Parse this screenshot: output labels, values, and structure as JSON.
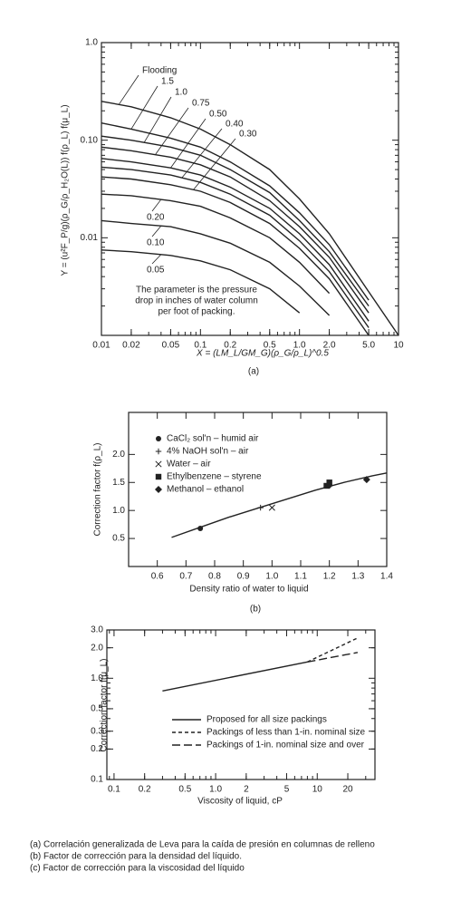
{
  "chart_data": [
    {
      "type": "line",
      "color": "#222222",
      "xlabel": "X = (LM_L/GM_G)(ρ_G/ρ_L)^0.5",
      "ylabel": "Y = (u²F_P/g)(ρ_G/ρ_H₂O(L)) f(ρ_L) f(μ_L)",
      "caption": "(a)",
      "annotation": [
        "The parameter is the pressure",
        "drop in inches of water column",
        "per foot of packing."
      ],
      "xlog": true,
      "ylog": true,
      "xlim": [
        0.01,
        10
      ],
      "ylim": [
        0.001,
        1
      ],
      "xticks": [
        0.01,
        0.02,
        0.05,
        0.1,
        0.2,
        0.5,
        {
          "value": 1,
          "label": "1.0"
        },
        {
          "value": 2,
          "label": "2.0"
        },
        {
          "value": 5,
          "label": "5.0"
        },
        10
      ],
      "yticks": [
        0.01,
        {
          "value": 0.1,
          "label": "0.10"
        },
        {
          "value": 1,
          "label": "1.0"
        }
      ],
      "x": [
        0.01,
        0.02,
        0.05,
        0.1,
        0.2,
        0.5,
        1,
        2,
        5,
        10
      ],
      "series": [
        {
          "name": "Flooding",
          "values": [
            0.25,
            0.22,
            0.17,
            0.13,
            0.09,
            0.05,
            0.025,
            0.011,
            0.0028,
            0.001
          ]
        },
        {
          "name": "1.5",
          "values": [
            0.15,
            0.13,
            0.105,
            0.085,
            0.06,
            0.034,
            0.018,
            0.0085,
            0.0023,
            null
          ]
        },
        {
          "name": "1.0",
          "values": [
            0.11,
            0.1,
            0.085,
            0.07,
            0.05,
            0.029,
            0.015,
            0.0072,
            0.002,
            null
          ]
        },
        {
          "name": "0.75",
          "values": [
            0.085,
            0.078,
            0.067,
            0.056,
            0.042,
            0.024,
            0.013,
            0.0063,
            0.0017,
            null
          ]
        },
        {
          "name": "0.50",
          "values": [
            0.065,
            0.06,
            0.052,
            0.044,
            0.033,
            0.02,
            0.011,
            0.0053,
            0.0014,
            null
          ]
        },
        {
          "name": "0.40",
          "values": [
            0.053,
            0.05,
            0.044,
            0.037,
            0.028,
            0.017,
            0.0093,
            0.0045,
            0.0012,
            null
          ]
        },
        {
          "name": "0.30",
          "values": [
            0.042,
            0.04,
            0.035,
            0.03,
            0.023,
            0.014,
            0.0078,
            0.0038,
            0.001,
            null
          ]
        },
        {
          "name": "0.20",
          "values": [
            0.028,
            0.027,
            0.024,
            0.021,
            0.016,
            0.01,
            0.0056,
            0.0027,
            null,
            null
          ]
        },
        {
          "name": "0.10",
          "values": [
            0.015,
            0.014,
            0.013,
            0.011,
            0.0088,
            0.0056,
            0.0032,
            0.0016,
            null,
            null
          ]
        },
        {
          "name": "0.05",
          "values": [
            0.0075,
            0.0072,
            0.0066,
            0.0058,
            0.0047,
            0.003,
            0.0017,
            null,
            null,
            null
          ]
        }
      ]
    },
    {
      "type": "scatter",
      "color": "#222222",
      "xlabel": "Density ratio of water to liquid",
      "ylabel": "Correction factor f(ρ_L)",
      "caption": "(b)",
      "legend": "upper left",
      "xlog": false,
      "ylog": false,
      "xlim": [
        0.5,
        1.4
      ],
      "ylim": [
        0,
        2.75
      ],
      "xticks": [
        0.6,
        0.7,
        0.8,
        0.9,
        {
          "value": 1,
          "label": "1.0"
        },
        1.1,
        1.2,
        1.3,
        1.4
      ],
      "yticks": [
        0.5,
        {
          "value": 1,
          "label": "1.0"
        },
        1.5,
        {
          "value": 2,
          "label": "2.0"
        }
      ],
      "series": [
        {
          "linestyle": "solid",
          "x": [
            0.65,
            0.75,
            0.85,
            0.95,
            1.05,
            1.15,
            1.25,
            1.35,
            1.4
          ],
          "values": [
            0.52,
            0.7,
            0.88,
            1.04,
            1.2,
            1.36,
            1.5,
            1.62,
            1.67
          ]
        },
        {
          "name": "CaCl₂ sol'n – humid air",
          "marker": "circle",
          "x": [
            0.75
          ],
          "values": [
            0.68
          ]
        },
        {
          "name": "4% NaOH sol'n – air",
          "marker": "plus",
          "x": [
            0.96
          ],
          "values": [
            1.05
          ]
        },
        {
          "name": "Water – air",
          "marker": "cross",
          "x": [
            1.0
          ],
          "values": [
            1.05
          ]
        },
        {
          "name": "Ethylbenzene – styrene",
          "marker": "square",
          "x": [
            1.2,
            1.19
          ],
          "values": [
            1.5,
            1.44
          ]
        },
        {
          "name": "Methanol – ethanol",
          "marker": "diamond",
          "x": [
            1.2,
            1.33
          ],
          "values": [
            1.45,
            1.55
          ]
        }
      ]
    },
    {
      "type": "line",
      "color": "#222222",
      "xlabel": "Viscosity of liquid, cP",
      "ylabel": "Correction factor f(μ_L)",
      "legend": "lower right",
      "xlog": true,
      "ylog": true,
      "xlim": [
        0.085,
        37
      ],
      "ylim": [
        0.1,
        3
      ],
      "xticks": [
        0.1,
        0.2,
        0.5,
        {
          "value": 1,
          "label": "1.0"
        },
        2,
        5,
        10,
        20
      ],
      "yticks": [
        0.1,
        0.2,
        0.3,
        0.5,
        {
          "value": 1,
          "label": "1.0"
        },
        {
          "value": 2,
          "label": "2.0"
        },
        {
          "value": 3,
          "label": "3.0"
        }
      ],
      "series": [
        {
          "name": "Proposed for all size packings",
          "linestyle": "solid",
          "x": [
            0.3,
            8
          ],
          "values": [
            0.75,
            1.45
          ]
        },
        {
          "name": "Packings of less than 1-in. nominal size",
          "linestyle": "dashed",
          "x": [
            8,
            25
          ],
          "values": [
            1.45,
            2.5
          ]
        },
        {
          "name": "Packings of 1-in. nominal size and over",
          "linestyle": "longdash",
          "x": [
            8,
            25
          ],
          "values": [
            1.45,
            1.8
          ]
        }
      ]
    }
  ],
  "notes": [
    "(a) Correlación generalizada de Leva para la caída de presión en columnas de  relleno",
    "(b) Factor de corrección para la densidad del líquido.",
    "(c)  Factor de corrección para la viscosidad del líquido"
  ]
}
